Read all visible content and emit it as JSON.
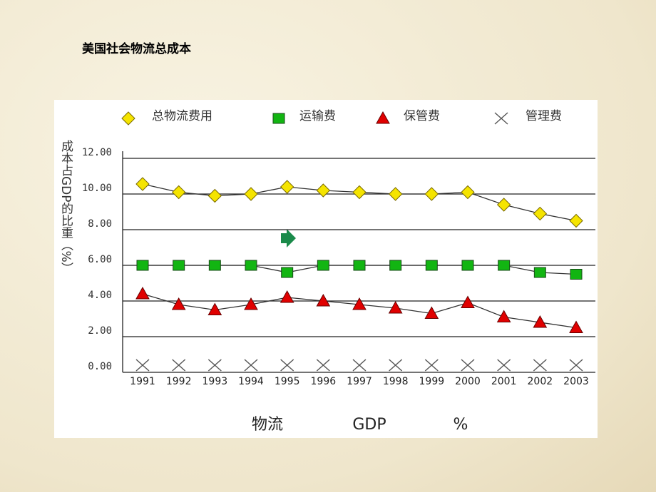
{
  "chart_data": {
    "type": "line",
    "title": "美国社会物流总成本",
    "ylabel": "成本占GDP的比重（%）",
    "xlabel_parts": [
      "物流",
      "GDP",
      "%"
    ],
    "categories": [
      "1991",
      "1992",
      "1993",
      "1994",
      "1995",
      "1996",
      "1997",
      "1998",
      "1999",
      "2000",
      "2001",
      "2002",
      "2003"
    ],
    "series": [
      {
        "name": "总物流费用",
        "color": "#f5e400",
        "marker": "diamond",
        "values": [
          10.56,
          10.1,
          9.9,
          10.0,
          10.4,
          10.2,
          10.1,
          10.0,
          10.0,
          10.1,
          9.4,
          8.9,
          8.5
        ]
      },
      {
        "name": "运输费",
        "color": "#12b512",
        "marker": "square",
        "values": [
          6.0,
          6.0,
          6.0,
          6.0,
          5.6,
          6.0,
          6.0,
          6.0,
          6.0,
          6.0,
          6.0,
          5.6,
          5.5
        ]
      },
      {
        "name": "保管费",
        "color": "#e00000",
        "marker": "triangle",
        "values": [
          4.4,
          3.8,
          3.5,
          3.8,
          4.2,
          4.0,
          3.8,
          3.6,
          3.3,
          3.9,
          3.1,
          2.8,
          2.5
        ]
      },
      {
        "name": "管理费",
        "color": "#555555",
        "marker": "x",
        "values": [
          0.4,
          0.4,
          0.4,
          0.4,
          0.4,
          0.4,
          0.4,
          0.4,
          0.4,
          0.4,
          0.4,
          0.4,
          0.4
        ]
      }
    ],
    "ylim": [
      0,
      12
    ],
    "yticks": [
      {
        "value": 0,
        "label": "0.00"
      },
      {
        "value": 2,
        "label": "2.00"
      },
      {
        "value": 4,
        "label": "4.00"
      },
      {
        "value": 6,
        "label": "6.00"
      },
      {
        "value": 8,
        "label": "8.00"
      },
      {
        "value": 10,
        "label": "10.00"
      },
      {
        "value": 12,
        "label": "12.00"
      }
    ],
    "grid": true
  }
}
